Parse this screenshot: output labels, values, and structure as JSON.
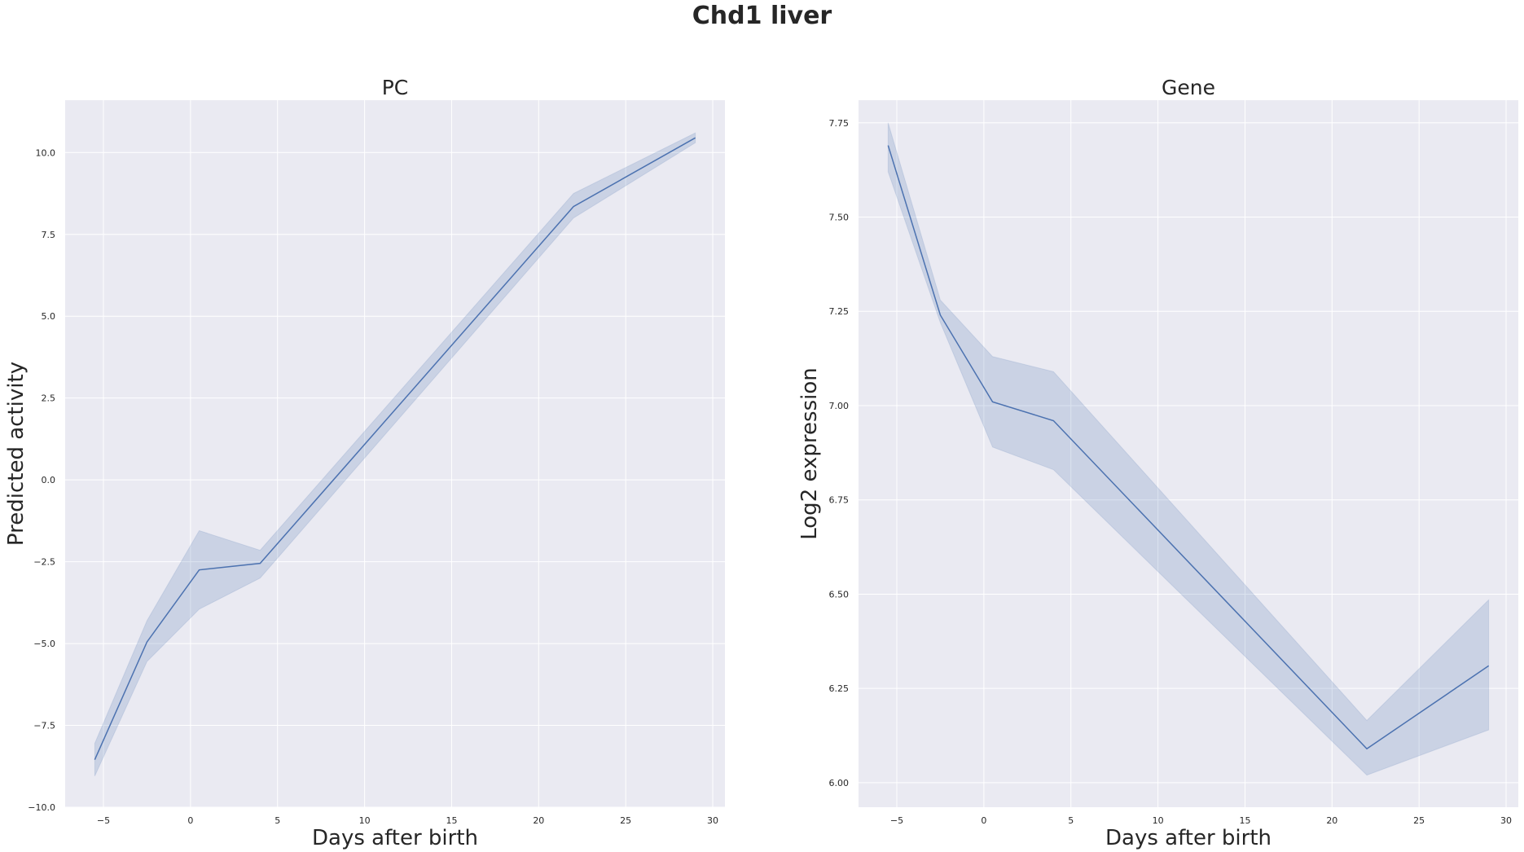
{
  "figure": {
    "title": "Chd1 liver"
  },
  "chart_data": [
    {
      "type": "line",
      "title": "PC",
      "xlabel": "Days after birth",
      "ylabel": "Predicted activity",
      "xlim": [
        -7.2,
        30.7
      ],
      "ylim": [
        -10.0,
        11.6
      ],
      "xticks": [
        -5,
        0,
        5,
        10,
        15,
        20,
        25,
        30
      ],
      "xtick_labels": [
        "−5",
        "0",
        "5",
        "10",
        "15",
        "20",
        "25",
        "30"
      ],
      "yticks": [
        -10.0,
        -7.5,
        -5.0,
        -2.5,
        0.0,
        2.5,
        5.0,
        7.5,
        10.0
      ],
      "ytick_labels": [
        "−10.0",
        "−7.5",
        "−5.0",
        "−2.5",
        "0.0",
        "2.5",
        "5.0",
        "7.5",
        "10.0"
      ],
      "grid": true,
      "series": [
        {
          "x": [
            -5.5,
            -2.5,
            0.5,
            4,
            22,
            29
          ],
          "y": [
            -8.55,
            -4.95,
            -2.75,
            -2.55,
            8.35,
            10.45
          ],
          "ci_low": [
            -9.05,
            -5.55,
            -3.95,
            -3.0,
            8.0,
            10.3
          ],
          "ci_high": [
            -8.05,
            -4.3,
            -1.55,
            -2.15,
            8.75,
            10.6
          ],
          "color": "#4c72b0"
        }
      ]
    },
    {
      "type": "line",
      "title": "Gene",
      "xlabel": "Days after birth",
      "ylabel": "Log2 expression",
      "xlim": [
        -7.2,
        30.7
      ],
      "ylim": [
        5.935,
        7.81
      ],
      "xticks": [
        -5,
        0,
        5,
        10,
        15,
        20,
        25,
        30
      ],
      "xtick_labels": [
        "−5",
        "0",
        "5",
        "10",
        "15",
        "20",
        "25",
        "30"
      ],
      "yticks": [
        6.0,
        6.25,
        6.5,
        6.75,
        7.0,
        7.25,
        7.5,
        7.75
      ],
      "ytick_labels": [
        "6.00",
        "6.25",
        "6.50",
        "6.75",
        "7.00",
        "7.25",
        "7.50",
        "7.75"
      ],
      "grid": true,
      "series": [
        {
          "x": [
            -5.5,
            -2.5,
            0.5,
            4,
            22,
            29
          ],
          "y": [
            7.69,
            7.24,
            7.01,
            6.96,
            6.09,
            6.31
          ],
          "ci_low": [
            7.62,
            7.22,
            6.89,
            6.83,
            6.02,
            6.14
          ],
          "ci_high": [
            7.75,
            7.28,
            7.13,
            7.09,
            6.165,
            6.485
          ],
          "color": "#4c72b0"
        }
      ]
    }
  ]
}
